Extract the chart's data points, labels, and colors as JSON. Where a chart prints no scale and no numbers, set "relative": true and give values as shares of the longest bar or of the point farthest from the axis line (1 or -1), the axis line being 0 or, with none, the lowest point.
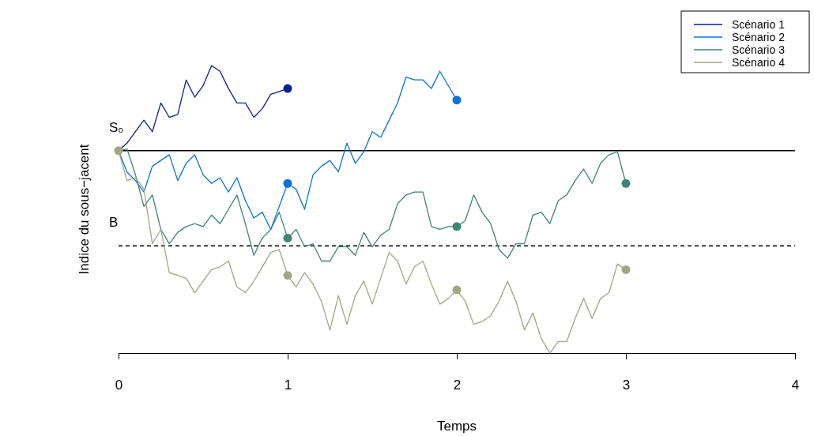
{
  "chart_data": {
    "type": "line",
    "relative": true,
    "xlabel": "Temps",
    "ylabel": "Indice du sous−jacent",
    "xlim": [
      0,
      4
    ],
    "xticks": [
      0,
      1,
      2,
      3,
      4
    ],
    "legend": "top right",
    "grid": false,
    "ref_lines": [
      {
        "axis": "y",
        "value": 0.704,
        "label": "S₀",
        "color": "#000000",
        "line_style": "solid"
      },
      {
        "axis": "y",
        "value": 0.373,
        "label": "B",
        "color": "#000000",
        "line_style": "dashed"
      }
    ],
    "series": [
      {
        "name": "Scénario 1",
        "color": "#0a1f8f",
        "x": [
          0,
          0.05,
          0.1,
          0.15,
          0.2,
          0.25,
          0.3,
          0.35,
          0.4,
          0.45,
          0.5,
          0.55,
          0.6,
          0.65,
          0.7,
          0.75,
          0.8,
          0.85,
          0.9,
          0.95,
          1
        ],
        "values": [
          0.704,
          0.73,
          0.77,
          0.81,
          0.77,
          0.87,
          0.82,
          0.83,
          0.95,
          0.89,
          0.93,
          1.0,
          0.98,
          0.92,
          0.87,
          0.87,
          0.82,
          0.85,
          0.9,
          0.91,
          0.92
        ]
      },
      {
        "name": "Scénario 2",
        "color": "#0a72d6",
        "x": [
          0,
          0.05,
          0.1,
          0.15,
          0.2,
          0.25,
          0.3,
          0.35,
          0.4,
          0.45,
          0.5,
          0.55,
          0.6,
          0.65,
          0.7,
          0.75,
          0.8,
          0.85,
          0.9,
          0.95,
          1,
          1.05,
          1.1,
          1.15,
          1.2,
          1.25,
          1.3,
          1.35,
          1.4,
          1.45,
          1.5,
          1.55,
          1.6,
          1.65,
          1.7,
          1.75,
          1.8,
          1.85,
          1.9,
          1.95,
          2
        ],
        "values": [
          0.704,
          0.63,
          0.6,
          0.56,
          0.65,
          0.67,
          0.69,
          0.6,
          0.66,
          0.69,
          0.62,
          0.59,
          0.61,
          0.56,
          0.61,
          0.53,
          0.47,
          0.49,
          0.43,
          0.51,
          0.59,
          0.57,
          0.5,
          0.62,
          0.65,
          0.67,
          0.63,
          0.73,
          0.66,
          0.7,
          0.77,
          0.75,
          0.81,
          0.87,
          0.96,
          0.95,
          0.95,
          0.92,
          0.98,
          0.93,
          0.88
        ]
      },
      {
        "name": "Scénario 3",
        "color": "#3d8577",
        "x": [
          0,
          0.05,
          0.1,
          0.15,
          0.2,
          0.25,
          0.3,
          0.35,
          0.4,
          0.45,
          0.5,
          0.55,
          0.6,
          0.65,
          0.7,
          0.75,
          0.8,
          0.85,
          0.9,
          0.95,
          1,
          1.05,
          1.1,
          1.15,
          1.2,
          1.25,
          1.3,
          1.35,
          1.4,
          1.45,
          1.5,
          1.55,
          1.6,
          1.65,
          1.7,
          1.75,
          1.8,
          1.85,
          1.9,
          1.95,
          2,
          2.05,
          2.1,
          2.15,
          2.2,
          2.25,
          2.3,
          2.35,
          2.4,
          2.45,
          2.5,
          2.55,
          2.6,
          2.65,
          2.7,
          2.75,
          2.8,
          2.85,
          2.9,
          2.95,
          3
        ],
        "values": [
          0.704,
          0.71,
          0.62,
          0.51,
          0.55,
          0.43,
          0.38,
          0.42,
          0.44,
          0.45,
          0.44,
          0.48,
          0.45,
          0.5,
          0.55,
          0.45,
          0.34,
          0.4,
          0.43,
          0.49,
          0.4,
          0.43,
          0.37,
          0.38,
          0.32,
          0.32,
          0.37,
          0.37,
          0.34,
          0.42,
          0.37,
          0.41,
          0.43,
          0.52,
          0.55,
          0.56,
          0.56,
          0.44,
          0.43,
          0.44,
          0.44,
          0.46,
          0.55,
          0.49,
          0.45,
          0.36,
          0.33,
          0.38,
          0.38,
          0.48,
          0.49,
          0.45,
          0.53,
          0.55,
          0.6,
          0.64,
          0.59,
          0.66,
          0.69,
          0.7,
          0.59
        ]
      },
      {
        "name": "Scénario 4",
        "color": "#a3a684",
        "x": [
          0,
          0.05,
          0.1,
          0.15,
          0.2,
          0.25,
          0.3,
          0.35,
          0.4,
          0.45,
          0.5,
          0.55,
          0.6,
          0.65,
          0.7,
          0.75,
          0.8,
          0.85,
          0.9,
          0.95,
          1,
          1.05,
          1.1,
          1.15,
          1.2,
          1.25,
          1.3,
          1.35,
          1.4,
          1.45,
          1.5,
          1.55,
          1.6,
          1.65,
          1.7,
          1.75,
          1.8,
          1.85,
          1.9,
          1.95,
          2,
          2.05,
          2.1,
          2.15,
          2.2,
          2.25,
          2.3,
          2.35,
          2.4,
          2.45,
          2.5,
          2.55,
          2.6,
          2.65,
          2.7,
          2.75,
          2.8,
          2.85,
          2.9,
          2.95,
          3
        ],
        "values": [
          0.704,
          0.6,
          0.61,
          0.57,
          0.38,
          0.43,
          0.28,
          0.27,
          0.26,
          0.21,
          0.25,
          0.29,
          0.3,
          0.32,
          0.23,
          0.21,
          0.25,
          0.3,
          0.35,
          0.36,
          0.27,
          0.23,
          0.28,
          0.24,
          0.18,
          0.08,
          0.2,
          0.1,
          0.2,
          0.25,
          0.17,
          0.26,
          0.35,
          0.32,
          0.24,
          0.3,
          0.32,
          0.24,
          0.17,
          0.19,
          0.22,
          0.18,
          0.1,
          0.11,
          0.13,
          0.18,
          0.25,
          0.18,
          0.08,
          0.14,
          0.05,
          0,
          0.04,
          0.04,
          0.12,
          0.19,
          0.12,
          0.19,
          0.21,
          0.31,
          0.29
        ]
      },
      {
        "type": "scatter",
        "marker": "circle",
        "color": "#0a1f8f",
        "x": [
          1
        ],
        "values": [
          0.92
        ]
      },
      {
        "type": "scatter",
        "marker": "circle",
        "color": "#0a72d6",
        "x": [
          1,
          2
        ],
        "values": [
          0.59,
          0.88
        ]
      },
      {
        "type": "scatter",
        "marker": "circle",
        "color": "#3d8577",
        "x": [
          1,
          2,
          3
        ],
        "values": [
          0.4,
          0.44,
          0.59
        ]
      },
      {
        "type": "scatter",
        "marker": "circle",
        "color": "#a3a684",
        "x": [
          0,
          1,
          2,
          3
        ],
        "values": [
          0.704,
          0.27,
          0.22,
          0.29
        ]
      }
    ]
  }
}
